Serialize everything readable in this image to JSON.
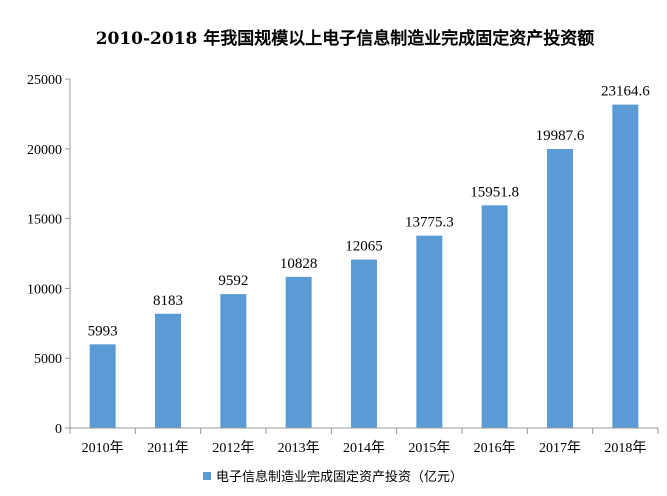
{
  "chart_data": {
    "type": "bar",
    "title": "2010-2018 年我国规模以上电子信息制造业完成固定资产投资额",
    "categories": [
      "2010年",
      "2011年",
      "2012年",
      "2013年",
      "2014年",
      "2015年",
      "2016年",
      "2017年",
      "2018年"
    ],
    "series": [
      {
        "name": "电子信息制造业完成固定资产投资（亿元）",
        "values": [
          5993,
          8183,
          9592,
          10828,
          12065,
          13775.3,
          15951.8,
          19987.6,
          23164.6
        ]
      }
    ],
    "data_labels": [
      "5993",
      "8183",
      "9592",
      "10828",
      "12065",
      "13775.3",
      "15951.8",
      "19987.6",
      "23164.6"
    ],
    "y_ticks": [
      "0",
      "5000",
      "10000",
      "15000",
      "20000",
      "25000"
    ],
    "ylim": [
      0,
      25000
    ],
    "grid": false,
    "legend_position": "bottom",
    "colors": {
      "bar": "#5b9bd5",
      "axis": "#999999"
    }
  }
}
